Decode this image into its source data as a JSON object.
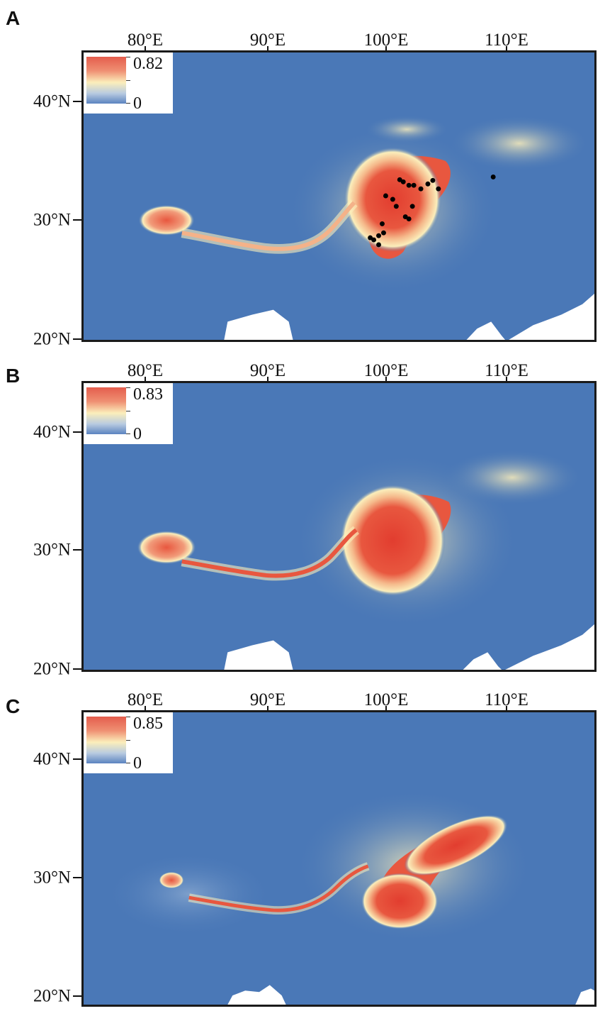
{
  "panels": [
    {
      "letter": "A",
      "lon_labels": [
        "80°E",
        "90°E",
        "100°E",
        "110°E"
      ],
      "lat_labels": [
        "40°N",
        "30°N",
        "20°N"
      ],
      "legend": {
        "max": "0.82",
        "min": "0"
      },
      "occurrences_shown": true
    },
    {
      "letter": "B",
      "lon_labels": [
        "80°E",
        "90°E",
        "100°E",
        "110°E"
      ],
      "lat_labels": [
        "40°N",
        "30°N",
        "20°N"
      ],
      "legend": {
        "max": "0.83",
        "min": "0"
      },
      "occurrences_shown": false
    },
    {
      "letter": "C",
      "lon_labels": [
        "80°E",
        "90°E",
        "100°E",
        "110°E"
      ],
      "lat_labels": [
        "40°N",
        "30°N",
        "20°N"
      ],
      "legend": {
        "max": "0.85",
        "min": "0"
      },
      "occurrences_shown": false
    }
  ],
  "colors": {
    "low": "#4a78b7",
    "mid": "#fbeebb",
    "high": "#e23d2f",
    "land_outside": "#ffffff",
    "occurrence_points": "#000000"
  }
}
